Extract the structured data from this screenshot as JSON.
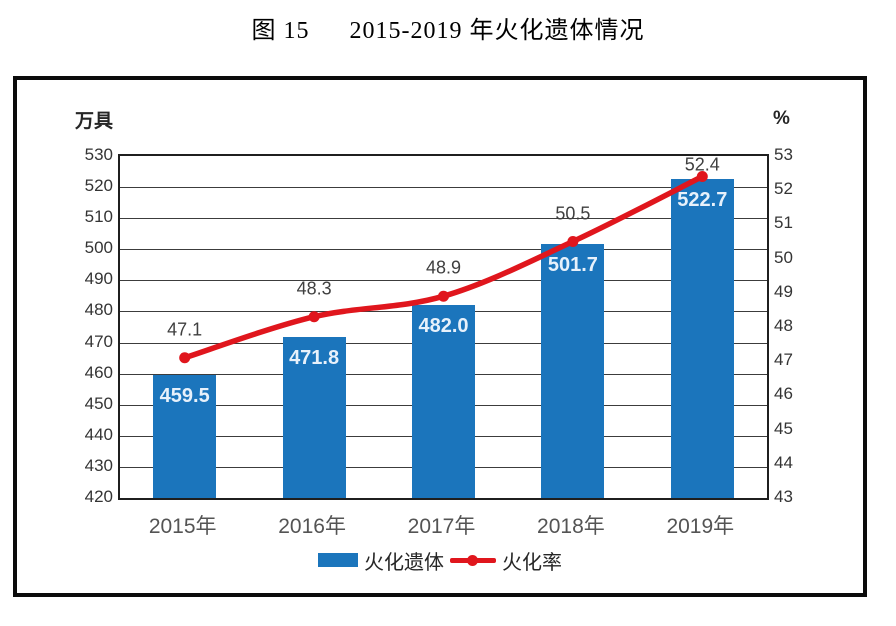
{
  "title": {
    "prefix": "图 15",
    "text": "2015-2019 年火化遗体情况"
  },
  "chart_data": {
    "type": "bar+line",
    "categories": [
      "2015年",
      "2016年",
      "2017年",
      "2018年",
      "2019年"
    ],
    "series": [
      {
        "name": "火化遗体",
        "type": "bar",
        "axis": "left",
        "values": [
          459.5,
          471.8,
          482.0,
          501.7,
          522.7
        ],
        "labels": [
          "459.5",
          "471.8",
          "482.0",
          "501.7",
          "522.7"
        ],
        "color": "#1b75bc"
      },
      {
        "name": "火化率",
        "type": "line",
        "axis": "right",
        "values": [
          47.1,
          48.3,
          48.9,
          50.5,
          52.4
        ],
        "labels": [
          "47.1",
          "48.3",
          "48.9",
          "50.5",
          "52.4"
        ],
        "color": "#e0161d"
      }
    ],
    "left_axis": {
      "unit": "万具",
      "min": 420,
      "max": 530,
      "step": 10
    },
    "right_axis": {
      "unit": "%",
      "min": 43,
      "max": 53,
      "step": 1
    },
    "grid": true,
    "legend_position": "bottom"
  },
  "colors": {
    "bar": "#1b75bc",
    "line": "#e0161d",
    "bar_label": "#e7f1fb",
    "tick_label": "#343434",
    "category_label": "#545454",
    "gridline": "#3c3c3c"
  }
}
